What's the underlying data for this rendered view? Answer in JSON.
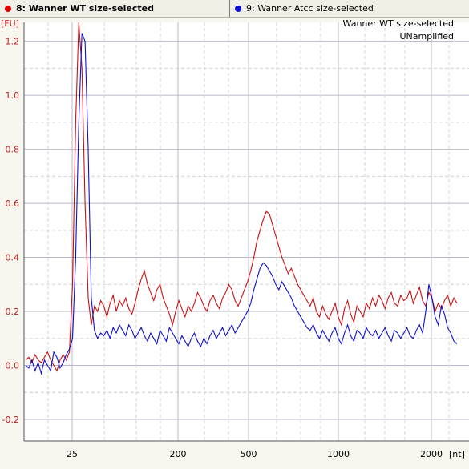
{
  "tabs": [
    {
      "label": "8: Wanner WT size-selected",
      "color": "#dd0000"
    },
    {
      "label": "9: Wanner Atcc size-selected",
      "color": "#1010dd"
    }
  ],
  "legend": {
    "line1": "Wanner WT size-selected",
    "line2": "UNamplified"
  },
  "colors": {
    "series1": "#cc1111",
    "series2": "#1111cc",
    "axis_y": "#c02020",
    "grid_major": "#b8b8c8",
    "grid_minor": "#d4d4d4"
  },
  "chart_data": {
    "type": "line",
    "xlabel": "[nt]",
    "ylabel": "[FU]",
    "ylim": [
      -0.28,
      1.27
    ],
    "y_ticks": [
      {
        "v": -0.2,
        "label": "-0.2"
      },
      {
        "v": 0.0,
        "label": "0.0"
      },
      {
        "v": 0.2,
        "label": "0.2"
      },
      {
        "v": 0.4,
        "label": "0.4"
      },
      {
        "v": 0.6,
        "label": "0.6"
      },
      {
        "v": 0.8,
        "label": "0.8"
      },
      {
        "v": 1.0,
        "label": "1.0"
      },
      {
        "v": 1.2,
        "label": "1.2"
      }
    ],
    "x_ticks": [
      "25",
      "200",
      "500",
      "1000",
      "2000"
    ],
    "x_axis_note": "size axis [nt] as printed (non-linear ladder scale)",
    "grid": true,
    "legend_position": "top-right",
    "series": [
      {
        "name": "Wanner WT size-selected",
        "points_per_tick": "see x_ticks",
        "values": [
          0.02,
          0.03,
          0.01,
          0.04,
          0.02,
          0.01,
          0.03,
          0.05,
          0.02,
          0.0,
          -0.02,
          0.02,
          0.04,
          0.02,
          0.05,
          0.3,
          0.9,
          1.27,
          1.1,
          0.6,
          0.25,
          0.15,
          0.22,
          0.2,
          0.24,
          0.22,
          0.18,
          0.23,
          0.26,
          0.2,
          0.24,
          0.22,
          0.25,
          0.21,
          0.19,
          0.23,
          0.28,
          0.32,
          0.35,
          0.3,
          0.27,
          0.24,
          0.28,
          0.3,
          0.25,
          0.22,
          0.19,
          0.15,
          0.2,
          0.24,
          0.21,
          0.18,
          0.22,
          0.2,
          0.23,
          0.27,
          0.25,
          0.22,
          0.2,
          0.24,
          0.26,
          0.23,
          0.21,
          0.25,
          0.27,
          0.3,
          0.28,
          0.24,
          0.22,
          0.25,
          0.28,
          0.31,
          0.35,
          0.4,
          0.46,
          0.5,
          0.54,
          0.57,
          0.56,
          0.52,
          0.48,
          0.44,
          0.4,
          0.37,
          0.34,
          0.36,
          0.33,
          0.3,
          0.28,
          0.26,
          0.24,
          0.22,
          0.25,
          0.2,
          0.18,
          0.22,
          0.19,
          0.17,
          0.2,
          0.23,
          0.18,
          0.15,
          0.21,
          0.24,
          0.19,
          0.16,
          0.22,
          0.2,
          0.18,
          0.23,
          0.21,
          0.25,
          0.22,
          0.26,
          0.24,
          0.21,
          0.25,
          0.27,
          0.23,
          0.22,
          0.26,
          0.24,
          0.25,
          0.28,
          0.23,
          0.26,
          0.29,
          0.24,
          0.22,
          0.27,
          0.25,
          0.2,
          0.23,
          0.21,
          0.24,
          0.26,
          0.22,
          0.25,
          0.23
        ]
      },
      {
        "name": "Wanner Atcc size-selected",
        "values": [
          0.0,
          -0.01,
          0.02,
          -0.02,
          0.01,
          -0.03,
          0.02,
          0.0,
          -0.02,
          0.05,
          0.03,
          -0.01,
          0.01,
          0.04,
          0.06,
          0.1,
          0.4,
          0.9,
          1.23,
          1.2,
          0.8,
          0.25,
          0.13,
          0.1,
          0.12,
          0.11,
          0.13,
          0.1,
          0.14,
          0.12,
          0.15,
          0.13,
          0.11,
          0.15,
          0.13,
          0.1,
          0.12,
          0.14,
          0.11,
          0.09,
          0.12,
          0.1,
          0.08,
          0.13,
          0.11,
          0.09,
          0.14,
          0.12,
          0.1,
          0.08,
          0.11,
          0.09,
          0.07,
          0.1,
          0.12,
          0.09,
          0.07,
          0.1,
          0.08,
          0.11,
          0.13,
          0.1,
          0.12,
          0.14,
          0.11,
          0.13,
          0.15,
          0.12,
          0.14,
          0.16,
          0.18,
          0.2,
          0.23,
          0.28,
          0.32,
          0.36,
          0.38,
          0.37,
          0.35,
          0.33,
          0.3,
          0.28,
          0.31,
          0.29,
          0.27,
          0.25,
          0.22,
          0.2,
          0.18,
          0.16,
          0.14,
          0.13,
          0.15,
          0.12,
          0.1,
          0.13,
          0.11,
          0.09,
          0.12,
          0.14,
          0.1,
          0.08,
          0.12,
          0.15,
          0.11,
          0.09,
          0.13,
          0.12,
          0.1,
          0.14,
          0.12,
          0.11,
          0.13,
          0.1,
          0.12,
          0.14,
          0.11,
          0.09,
          0.13,
          0.12,
          0.1,
          0.12,
          0.14,
          0.11,
          0.1,
          0.13,
          0.15,
          0.12,
          0.2,
          0.3,
          0.25,
          0.18,
          0.15,
          0.22,
          0.19,
          0.14,
          0.12,
          0.09,
          0.08
        ]
      }
    ]
  }
}
